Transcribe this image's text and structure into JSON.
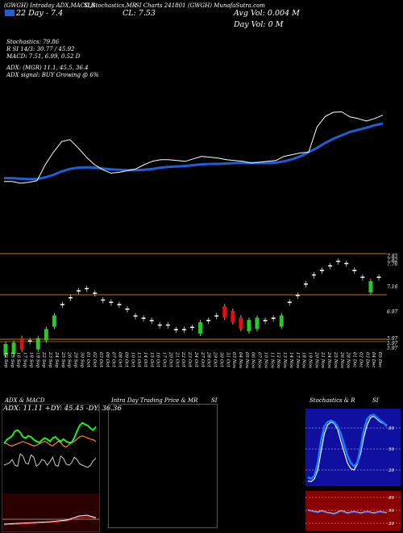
{
  "header": {
    "line1_left": "(GWGH) Intraday ADX,MACD,R",
    "line1_mid": "SI,Stochastics,MR",
    "line1_right": "SI Charts 241801",
    "line1_far": "(GWGH) MunafaSutra.com",
    "legend_label": "22 Day - 7.4",
    "close_label": "CL: 7.53",
    "avg_vol": "Avg Vol: 0.004  M",
    "day_vol": "Day Vol: 0  M",
    "stoch": "Stochastics: 79.86",
    "rsi": "R                 SI 14/3: 30.77 / 45.92",
    "macd": "MACD: 7.51, 6.99, 0.52  D",
    "adx": "ADX:                      (MGR) 11.1, 45.5, 36.4",
    "adx_signal": "ADX signal:                        BUY Growing @ 6%"
  },
  "price_axis": [
    "7.85",
    "7.82",
    "7.76",
    "7.16",
    "6.97",
    "5.97",
    "5.97",
    "5.97"
  ],
  "dates": [
    "12 Sep",
    "15 Sep",
    "16 Sep",
    "17 Sep",
    "18 Sep",
    "19 Sep",
    "22 Sep",
    "23 Sep",
    "24 Sep",
    "25 Sep",
    "26 Sep",
    "29 Sep",
    "30 Sep",
    "01 Oct",
    "02 Oct",
    "03 Oct",
    "06 Oct",
    "07 Oct",
    "08 Oct",
    "09 Oct",
    "10 Oct",
    "13 Oct",
    "14 Oct",
    "15 Oct",
    "16 Oct",
    "17 Oct",
    "20 Oct",
    "21 Oct",
    "22 Oct",
    "23 Oct",
    "24 Oct",
    "27 Oct",
    "28 Oct",
    "29 Oct",
    "30 Oct",
    "31 Oct",
    "03 Nov",
    "04 Nov",
    "05 Nov",
    "06 Nov",
    "07 Nov",
    "10 Nov",
    "11 Nov",
    "12 Nov",
    "13 Nov",
    "14 Nov",
    "17 Nov",
    "18 Nov",
    "19 Nov",
    "20 Nov",
    "21 Nov",
    "24 Nov",
    "25 Nov",
    "26 Nov",
    "28 Nov",
    "01 Dec",
    "02 Dec",
    "03 Dec",
    "04 Dec",
    "05 Dec"
  ],
  "panels": {
    "adx_title": "ADX  & MACD",
    "adx_values": "ADX: 11.11  +DY: 45.45  -DY: 36.36",
    "mrsi_title": "Intra Day Trading Price  & MR",
    "mrsi_title_right": "SI",
    "stoch_title": "Stochastics & R",
    "stoch_title_right": "SI",
    "stoch_ticks": [
      "80",
      "50",
      "20"
    ],
    "rsi_ticks": [
      "80",
      "50",
      "20"
    ]
  },
  "colors": {
    "background": "#000000",
    "ma_line": "#1e5fd8",
    "price_line": "#ffffff",
    "up_candle": "#22cc22",
    "down_candle": "#dd1111",
    "level_line": "#b8761e",
    "adx_plus": "#22ee22",
    "adx_minus": "#ff8a1e",
    "stoch_fill": "#1010a0",
    "rsi_fill": "#8a0000"
  },
  "chart_data": [
    {
      "type": "line",
      "series": [
        {
          "values": [
            70,
            70,
            66,
            68,
            72,
            110,
            140,
            165,
            170,
            150,
            128,
            110,
            98,
            90,
            92,
            96,
            100,
            110,
            118,
            122,
            122,
            120,
            118,
            124,
            130,
            128,
            126,
            122,
            120,
            118,
            114,
            116,
            118,
            120,
            130,
            134,
            138,
            140,
            200,
            225,
            235,
            236,
            224,
            220,
            214,
            220,
            228
          ]
        },
        {
          "values": [
            78,
            78,
            77,
            76,
            76,
            80,
            86,
            94,
            100,
            103,
            104,
            103,
            101,
            99,
            98,
            97,
            97,
            98,
            100,
            103,
            105,
            106,
            107,
            109,
            111,
            112,
            112,
            113,
            114,
            114,
            114,
            114,
            114,
            115,
            118,
            123,
            130,
            140,
            150,
            162,
            172,
            180,
            188,
            193,
            198,
            204,
            208
          ]
        }
      ]
    },
    {
      "type": "bar",
      "title": "price candles",
      "series": [
        {
          "name": "candles",
          "values": [
            5.97,
            6.0,
            6.1,
            6.05,
            6.1,
            6.3,
            6.6,
            6.85,
            7.0,
            7.15,
            7.2,
            7.1,
            6.95,
            6.9,
            6.85,
            6.75,
            6.6,
            6.55,
            6.5,
            6.4,
            6.4,
            6.3,
            6.3,
            6.35,
            6.45,
            6.5,
            6.6,
            6.8,
            6.7,
            6.55,
            6.5,
            6.55,
            6.5,
            6.55,
            6.6,
            6.9,
            7.05,
            7.3,
            7.5,
            7.6,
            7.7,
            7.8,
            7.75,
            7.6,
            7.45,
            7.35,
            7.45
          ]
        }
      ]
    },
    {
      "type": "line",
      "title": "ADX & MACD",
      "series": [
        {
          "values": [
            48,
            55,
            58,
            62,
            70,
            72,
            68,
            60,
            58,
            62,
            60,
            55,
            52,
            50,
            54,
            58,
            56,
            52,
            58,
            60,
            55,
            52,
            56,
            52,
            50,
            50,
            58,
            70,
            80,
            85,
            82,
            80,
            75,
            72,
            78
          ]
        },
        {
          "values": [
            50,
            48,
            45,
            44,
            46,
            48,
            50,
            52,
            50,
            48,
            46,
            44,
            45,
            48,
            50,
            52,
            50,
            46,
            44,
            48,
            52,
            50,
            44,
            42,
            46,
            50,
            52,
            56,
            60,
            62,
            60,
            58,
            56,
            55,
            52
          ]
        },
        {
          "values": [
            10,
            12,
            14,
            20,
            10,
            8,
            30,
            26,
            14,
            12,
            28,
            24,
            8,
            12,
            20,
            18,
            10,
            16,
            24,
            10,
            8,
            26,
            22,
            12,
            10,
            14,
            24,
            20,
            12,
            10,
            8,
            6,
            10,
            18,
            22
          ]
        }
      ]
    },
    {
      "type": "line",
      "title": "Stochastics & RSI",
      "series": [
        {
          "values": [
            10,
            8,
            12,
            30,
            60,
            80,
            86,
            88,
            86,
            80,
            70,
            55,
            40,
            30,
            25,
            30,
            50,
            75,
            90,
            95,
            96,
            92,
            88,
            85,
            80
          ]
        },
        {
          "values": [
            5,
            4,
            8,
            20,
            45,
            70,
            82,
            86,
            84,
            76,
            60,
            45,
            30,
            22,
            20,
            28,
            42,
            65,
            82,
            92,
            94,
            90,
            86,
            84,
            82
          ]
        },
        {
          "values": [
            52,
            50,
            48,
            46,
            50,
            48,
            45,
            44,
            42,
            46,
            50,
            48,
            44,
            46,
            48,
            46,
            44,
            46,
            48,
            46,
            44,
            46,
            48,
            46,
            45
          ]
        }
      ]
    }
  ]
}
